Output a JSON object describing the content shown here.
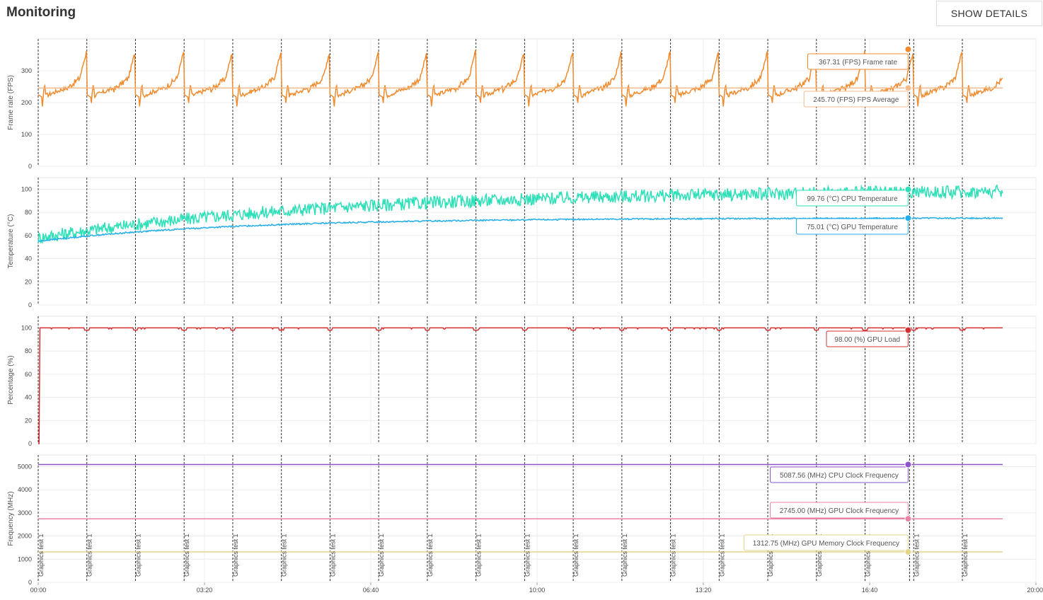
{
  "header": {
    "title": "Monitoring",
    "details_label": "SHOW DETAILS"
  },
  "colors": {
    "frame_rate": "#f08a2c",
    "fps_average": "#f5b98a",
    "cpu_temp": "#2de0b8",
    "gpu_temp": "#22aee8",
    "gpu_load": "#d42f2f",
    "cpu_clock": "#8b54c9",
    "gpu_clock": "#e982a4",
    "gpu_mem_clock": "#e3d58c",
    "grid": "#ececec",
    "marker": "#333333"
  },
  "chart_data": [
    {
      "type": "line",
      "ylabel": "Frame rate (FPS)",
      "ylim": [
        0,
        400
      ],
      "yticks": [
        0,
        100,
        200,
        300
      ],
      "series": [
        {
          "name": "Frame rate",
          "unit": "(FPS)",
          "readout": "367.31",
          "style": "sawtooth",
          "base": 215,
          "peak": 368,
          "color_key": "frame_rate"
        },
        {
          "name": "FPS Average",
          "unit": "(FPS)",
          "readout": "245.70",
          "style": "flat",
          "value": 245.7,
          "color_key": "fps_average"
        }
      ]
    },
    {
      "type": "line",
      "ylabel": "Temperature (°C)",
      "ylim": [
        0,
        110
      ],
      "yticks": [
        0,
        20,
        40,
        60,
        80,
        100
      ],
      "series": [
        {
          "name": "CPU Temperature",
          "unit": "(°C)",
          "readout": "99.76",
          "style": "noisy_rise",
          "start": 58,
          "end": 98,
          "noise": 3.5,
          "color_key": "cpu_temp"
        },
        {
          "name": "GPU Temperature",
          "unit": "(°C)",
          "readout": "75.01",
          "style": "smooth_rise",
          "start": 55,
          "end": 75,
          "noise": 0.6,
          "color_key": "gpu_temp"
        }
      ]
    },
    {
      "type": "line",
      "ylabel": "Percentage (%)",
      "ylim": [
        0,
        110
      ],
      "yticks": [
        0,
        20,
        40,
        60,
        80,
        100
      ],
      "series": [
        {
          "name": "GPU Load",
          "unit": "(%)",
          "readout": "98.00",
          "style": "load",
          "value": 100,
          "color_key": "gpu_load"
        }
      ]
    },
    {
      "type": "line",
      "ylabel": "Frequency (MHz)",
      "ylim": [
        0,
        5500
      ],
      "yticks": [
        0,
        1000,
        2000,
        3000,
        4000,
        5000
      ],
      "series": [
        {
          "name": "CPU Clock Frequency",
          "unit": "(MHz)",
          "readout": "5087.56",
          "style": "flat",
          "value": 5087.56,
          "color_key": "cpu_clock"
        },
        {
          "name": "GPU Clock Frequency",
          "unit": "(MHz)",
          "readout": "2745.00",
          "style": "flat",
          "value": 2745,
          "color_key": "gpu_clock"
        },
        {
          "name": "GPU Memory Clock Frequency",
          "unit": "(MHz)",
          "readout": "1312.75",
          "style": "flat",
          "value": 1312.75,
          "color_key": "gpu_mem_clock"
        }
      ]
    }
  ],
  "x_axis": {
    "range_seconds": [
      0,
      1200
    ],
    "ticks": [
      {
        "t": 0,
        "label": "00:00"
      },
      {
        "t": 200,
        "label": "03:20"
      },
      {
        "t": 400,
        "label": "06:40"
      },
      {
        "t": 600,
        "label": "10:00"
      },
      {
        "t": 800,
        "label": "13:20"
      },
      {
        "t": 1000,
        "label": "16:40"
      },
      {
        "t": 1200,
        "label": "20:00"
      }
    ],
    "end_seconds": 1160,
    "cursor_seconds": 1048
  },
  "markers": {
    "label": "Graphics test 1",
    "times": [
      0,
      58.5,
      117,
      175.5,
      234,
      292.5,
      351,
      409.5,
      468,
      526.5,
      585,
      643.5,
      702,
      760.5,
      819,
      877.5,
      936,
      994.5,
      1053,
      1111.5
    ]
  }
}
